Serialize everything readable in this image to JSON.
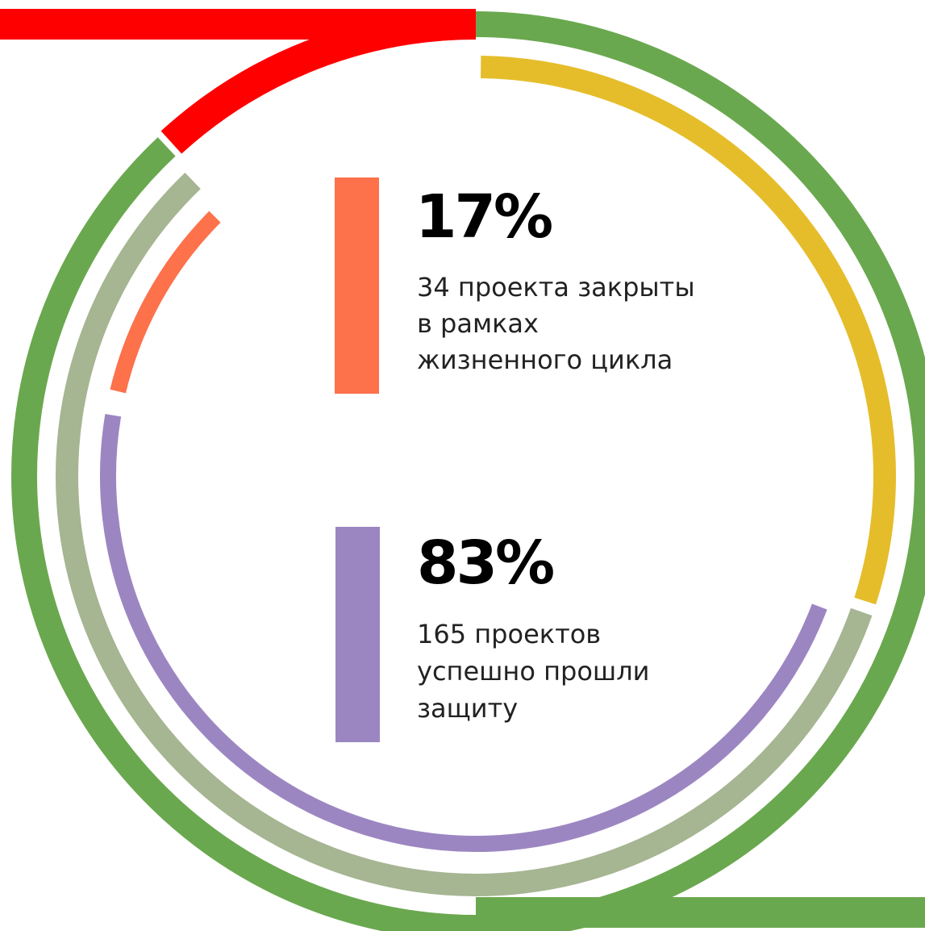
{
  "stats": [
    {
      "value": "17%",
      "lines": [
        "34 проекта закрыты",
        "в рамках",
        "жизненного цикла"
      ]
    },
    {
      "value": "83%",
      "lines": [
        "165 проектов",
        "успешно прошли",
        "защиту"
      ]
    }
  ]
}
